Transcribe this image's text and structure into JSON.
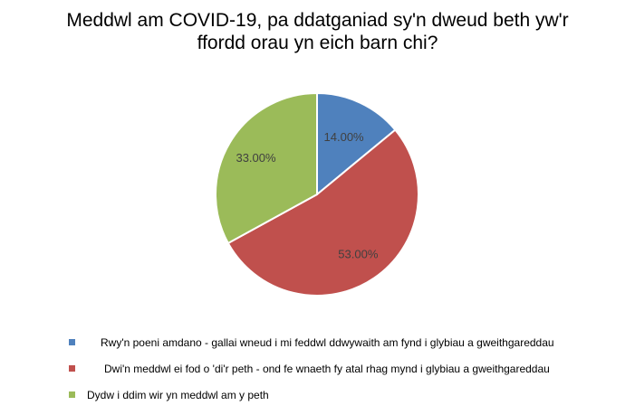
{
  "chart_data": {
    "type": "pie",
    "title_lines": [
      "Meddwl am COVID-19, pa ddatganiad sy'n dweud beth yw'r",
      "ffordd orau yn eich barn chi?"
    ],
    "slices": [
      {
        "label": "Rwy'n poeni amdano - gallai wneud i mi feddwl ddwywaith am fynd i glybiau a gweithgareddau",
        "value": 14.0,
        "value_label": "14.00%",
        "color": "#4f81bd"
      },
      {
        "label": "Dwi'n meddwl ei fod o 'di'r peth - ond fe wnaeth fy atal rhag mynd i glybiau a gweithgareddau",
        "value": 53.0,
        "value_label": "53.00%",
        "color": "#c0504d"
      },
      {
        "label": "Dydw i ddim wir yn meddwl am y peth",
        "value": 33.0,
        "value_label": "33.00%",
        "color": "#9bbb59"
      }
    ],
    "legend_position": "bottom"
  }
}
